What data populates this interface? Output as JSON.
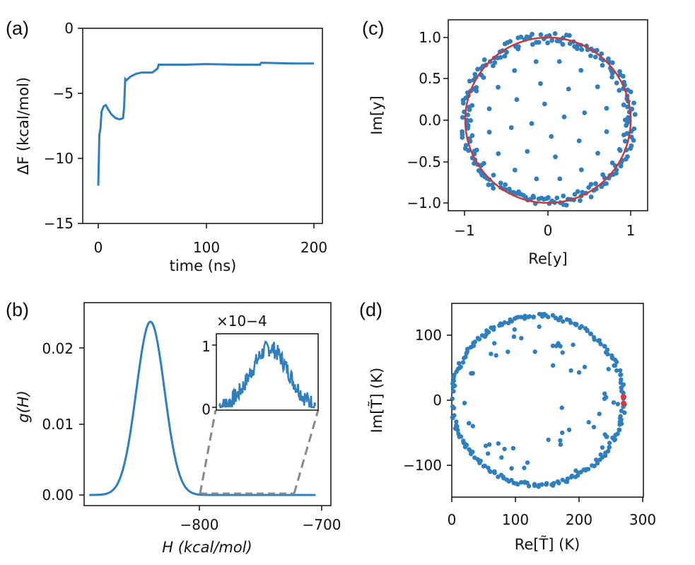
{
  "colors": {
    "series": "#2f7fbf",
    "circle": "#c8383e",
    "highlight": "#e0353a",
    "axis": "#111111",
    "dash": "#888888"
  },
  "chart_data": [
    {
      "panel": "(a)",
      "type": "line",
      "xlabel": "time (ns)",
      "ylabel": "ΔF (kcal/mol)",
      "xlim": [
        -10,
        210
      ],
      "ylim": [
        -15,
        0
      ],
      "xticks": [
        "0",
        "100",
        "200"
      ],
      "yticks": [
        "0",
        "−5",
        "−10",
        "−15"
      ],
      "series": [
        {
          "x": [
            0,
            1,
            2,
            3,
            5,
            7,
            9,
            12,
            16,
            20,
            23,
            24,
            25,
            26,
            30,
            35,
            40,
            45,
            50,
            55,
            56,
            60,
            80,
            100,
            130,
            150,
            151,
            180,
            200
          ],
          "y": [
            -12.1,
            -8.2,
            -7.7,
            -6.4,
            -6.0,
            -5.9,
            -6.2,
            -6.6,
            -6.9,
            -7.0,
            -6.9,
            -6.0,
            -3.9,
            -4.0,
            -3.7,
            -3.5,
            -3.4,
            -3.4,
            -3.4,
            -3.1,
            -2.8,
            -2.8,
            -2.8,
            -2.75,
            -2.8,
            -2.8,
            -2.65,
            -2.7,
            -2.7
          ]
        }
      ]
    },
    {
      "panel": "(b)",
      "type": "line",
      "xlabel": "H (kcal/mol)",
      "ylabel": "g(H)",
      "xlim": [
        -895,
        -700
      ],
      "ylim": [
        -0.0015,
        0.027
      ],
      "xticks": [
        "−800",
        "−700"
      ],
      "yticks": [
        "0.00",
        "0.01",
        "0.02"
      ],
      "series": [
        {
          "note": "peaked distribution",
          "peak_x": -840,
          "peak_y": 0.0245,
          "x_range": [
            -890,
            -705
          ]
        }
      ],
      "inset": {
        "scale_label": "×10−4",
        "yticks": [
          "0",
          "1"
        ],
        "x_range": [
          -803,
          -725
        ],
        "ylim": [
          0,
          1.3
        ]
      }
    },
    {
      "panel": "(c)",
      "type": "scatter",
      "xlabel": "Re[y]",
      "ylabel": "Im[y]",
      "xlim": [
        -1.2,
        1.2
      ],
      "ylim": [
        -1.12,
        1.12
      ],
      "xticks": [
        "−1",
        "0",
        "1"
      ],
      "yticks": [
        "1.0",
        "0.5",
        "0.0",
        "−0.5",
        "−1.0"
      ],
      "unit_circle": {
        "radius": 1.0
      }
    },
    {
      "panel": "(d)",
      "type": "scatter",
      "xlabel": "Re[T̃] (K)",
      "ylabel": "Im[T̃] (K)",
      "xlim": [
        0,
        300
      ],
      "ylim": [
        -150,
        150
      ],
      "xticks": [
        "0",
        "100",
        "200",
        "300"
      ],
      "yticks": [
        "100",
        "0",
        "−100"
      ],
      "highlight_points": [
        {
          "x": 270,
          "y": 5
        },
        {
          "x": 270,
          "y": -5
        }
      ]
    }
  ]
}
